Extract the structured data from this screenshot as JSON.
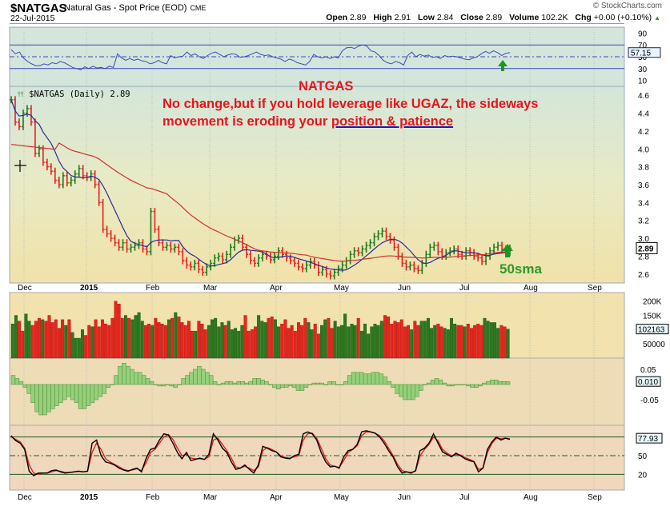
{
  "header": {
    "symbol": "$NATGAS",
    "description": "Natural Gas - Spot Price (EOD)",
    "exchange": "CME",
    "date": "22-Jul-2015",
    "brand": "© StockCharts.com",
    "open_label": "Open",
    "open": "2.89",
    "high_label": "High",
    "high": "2.91",
    "low_label": "Low",
    "low": "2.84",
    "close_label": "Close",
    "close": "2.89",
    "volume_label": "Volume",
    "volume": "102.2K",
    "chg_label": "Chg",
    "chg": "+0.00 (+0.10%)",
    "chg_icon": "up-triangle-icon"
  },
  "annotations": {
    "title": "NATGAS",
    "line1": "No change,but if you hold leverage like UGAZ, the sideways",
    "line2_prefix": "movement is eroding your ",
    "line2_underlined": "position & patience",
    "sma_label": "50sma",
    "arrow_icon": "green-up-arrow-icon"
  },
  "price_panel_label": "$NATGAS (Daily) 2.89",
  "colors": {
    "up": "#1e7a1e",
    "down": "#e8201c",
    "sma_short": "#2a2a9a",
    "sma_50": "#d0302a",
    "rsi_line": "#3a4ab8",
    "annot_red": "#e8141c",
    "annot_green": "#2a9a2a"
  },
  "chart_data": [
    {
      "panel": "rsi",
      "type": "line",
      "title": "RSI(14)",
      "yticks": [
        90,
        70,
        50,
        30,
        10
      ],
      "ylim": [
        0,
        100
      ],
      "last_value": "57.15",
      "bands": [
        30,
        50,
        70
      ],
      "values": [
        62,
        55,
        58,
        48,
        42,
        38,
        35,
        35,
        38,
        36,
        40,
        38,
        42,
        40,
        36,
        32,
        30,
        28,
        33,
        30,
        34,
        31,
        32,
        30,
        34,
        32,
        55,
        48,
        44,
        47,
        44,
        46,
        43,
        42,
        38,
        40,
        44,
        40,
        38,
        52,
        48,
        50,
        51,
        58,
        52,
        55,
        50,
        47,
        52,
        56,
        58,
        54,
        50,
        53,
        55,
        54,
        49,
        50,
        52,
        55,
        58,
        54,
        52,
        53,
        50,
        48,
        46,
        42,
        46,
        44,
        40,
        38,
        36,
        42,
        54,
        50,
        48,
        50,
        47,
        50,
        48,
        60,
        65,
        66,
        64,
        68,
        70,
        68,
        60,
        58,
        52,
        44,
        40,
        38,
        42,
        40,
        36,
        52,
        58,
        50,
        54,
        51,
        53,
        49,
        50,
        47,
        52,
        50,
        51,
        50,
        48,
        46,
        45,
        48,
        50,
        55,
        59,
        56,
        60,
        57,
        52,
        56,
        57
      ],
      "x": "trading days Nov-2014 to 22-Jul-2015"
    },
    {
      "panel": "price",
      "type": "ohlc",
      "title": "$NATGAS (Daily) 2.89",
      "yticks": [
        4.6,
        4.4,
        4.2,
        4.0,
        3.8,
        3.6,
        3.4,
        3.2,
        3.0,
        2.8,
        2.6
      ],
      "ylim": [
        2.5,
        4.7
      ],
      "last_value": "2.89",
      "closes": [
        4.55,
        4.3,
        4.25,
        4.4,
        4.45,
        4.3,
        3.95,
        4.0,
        3.85,
        3.8,
        3.75,
        3.65,
        3.6,
        3.7,
        3.62,
        3.65,
        3.72,
        3.78,
        3.7,
        3.68,
        3.72,
        3.6,
        3.4,
        3.1,
        3.05,
        3.0,
        2.95,
        2.9,
        2.95,
        2.88,
        2.9,
        2.92,
        2.95,
        2.88,
        2.85,
        3.3,
        3.1,
        2.95,
        2.9,
        2.92,
        2.88,
        2.9,
        2.85,
        2.75,
        2.7,
        2.68,
        2.72,
        2.65,
        2.62,
        2.68,
        2.72,
        2.78,
        2.8,
        2.76,
        2.82,
        2.9,
        2.98,
        3.0,
        2.9,
        2.82,
        2.75,
        2.72,
        2.78,
        2.82,
        2.8,
        2.76,
        2.8,
        2.86,
        2.82,
        2.78,
        2.75,
        2.72,
        2.68,
        2.66,
        2.7,
        2.74,
        2.7,
        2.62,
        2.65,
        2.6,
        2.58,
        2.62,
        2.66,
        2.7,
        2.75,
        2.82,
        2.86,
        2.84,
        2.88,
        2.92,
        2.95,
        3.02,
        3.05,
        3.08,
        3.02,
        2.98,
        2.9,
        2.8,
        2.72,
        2.68,
        2.7,
        2.66,
        2.64,
        2.72,
        2.82,
        2.9,
        2.92,
        2.85,
        2.8,
        2.84,
        2.86,
        2.88,
        2.82,
        2.8,
        2.86,
        2.84,
        2.8,
        2.78,
        2.74,
        2.8,
        2.86,
        2.9,
        2.92,
        2.88,
        2.84,
        2.89
      ],
      "sma_short": "blue ~10-20 day moving average",
      "sma_50": "red 50-day simple moving average"
    },
    {
      "panel": "volume",
      "type": "bar",
      "yticks": [
        "200K",
        "150K",
        "50000"
      ],
      "last_value": "102163",
      "values": [
        120,
        150,
        130,
        95,
        155,
        130,
        115,
        130,
        140,
        135,
        130,
        150,
        125,
        135,
        105,
        135,
        115,
        135,
        90,
        70,
        70,
        100,
        80,
        115,
        110,
        135,
        110,
        135,
        120,
        115,
        140,
        200,
        190,
        140,
        150,
        140,
        135,
        150,
        160,
        130,
        115,
        120,
        115,
        140,
        125,
        120,
        115,
        135,
        140,
        160,
        145,
        125,
        115,
        130,
        95,
        95,
        130,
        120,
        100,
        115,
        135,
        140,
        110,
        125,
        115,
        130,
        100,
        105,
        95,
        115,
        150,
        95,
        100,
        110,
        150,
        130,
        125,
        140,
        145,
        135,
        110,
        120,
        135,
        105,
        115,
        95,
        125,
        115,
        140,
        125,
        100,
        120,
        85,
        115,
        135,
        140,
        105,
        130,
        110,
        115,
        155,
        110,
        120,
        115,
        140,
        95,
        120,
        85,
        110,
        120,
        115,
        130,
        150,
        145,
        120,
        130,
        125,
        135,
        110,
        115,
        100,
        130,
        115,
        130,
        130,
        140,
        105,
        115,
        120,
        110,
        105,
        100,
        140,
        120,
        115,
        115,
        110,
        120,
        105,
        115,
        120,
        115,
        140,
        130,
        125,
        125,
        105,
        115,
        110,
        102
      ]
    },
    {
      "panel": "macd_histogram",
      "type": "bar",
      "yticks": [
        0.05,
        -0.05
      ],
      "last_value": "0.010",
      "values": [
        0.03,
        0.02,
        0.01,
        -0.01,
        -0.03,
        -0.06,
        -0.09,
        -0.1,
        -0.1,
        -0.09,
        -0.08,
        -0.07,
        -0.06,
        -0.05,
        -0.04,
        -0.05,
        -0.06,
        -0.08,
        -0.08,
        -0.07,
        -0.06,
        -0.05,
        -0.04,
        -0.03,
        -0.01,
        0.0,
        0.03,
        0.06,
        0.07,
        0.06,
        0.05,
        0.04,
        0.04,
        0.03,
        0.02,
        0.01,
        0.0,
        -0.005,
        -0.005,
        0.0,
        -0.005,
        -0.01,
        0.0,
        0.02,
        0.03,
        0.04,
        0.05,
        0.06,
        0.05,
        0.04,
        0.03,
        0.01,
        0.0,
        0.005,
        0.01,
        0.01,
        0.005,
        0.01,
        0.01,
        0.005,
        0.01,
        0.02,
        0.02,
        0.015,
        0.01,
        0.0,
        -0.01,
        -0.015,
        -0.01,
        -0.01,
        -0.005,
        -0.01,
        -0.02,
        -0.02,
        -0.01,
        0.0,
        0.005,
        0.005,
        0.005,
        0.0,
        0.01,
        0.01,
        0.0,
        0.0,
        0.01,
        0.03,
        0.04,
        0.04,
        0.04,
        0.035,
        0.035,
        0.04,
        0.04,
        0.035,
        0.025,
        0.01,
        -0.01,
        -0.03,
        -0.04,
        -0.05,
        -0.05,
        -0.05,
        -0.04,
        -0.02,
        0.0,
        0.005,
        0.015,
        0.02,
        0.015,
        0.005,
        -0.005,
        -0.005,
        0.0,
        0.0,
        0.0,
        -0.005,
        -0.01,
        -0.01,
        -0.005,
        0.005,
        0.01,
        0.015,
        0.015,
        0.01,
        0.01,
        0.01
      ]
    },
    {
      "panel": "stochastic",
      "type": "line",
      "yticks": [
        50,
        20
      ],
      "bands": [
        20,
        50,
        80
      ],
      "last_value": "77.93",
      "series": [
        {
          "name": "%K",
          "color": "#000000",
          "values": [
            82,
            74,
            70,
            60,
            25,
            18,
            22,
            22,
            22,
            26,
            27,
            24,
            22,
            23,
            24,
            25,
            24,
            25,
            70,
            75,
            50,
            40,
            38,
            35,
            30,
            27,
            25,
            28,
            30,
            24,
            45,
            60,
            62,
            75,
            85,
            83,
            70,
            55,
            45,
            55,
            42,
            44,
            46,
            44,
            52,
            85,
            75,
            62,
            55,
            40,
            28,
            30,
            35,
            28,
            22,
            35,
            65,
            62,
            58,
            56,
            48,
            46,
            45,
            50,
            52,
            85,
            88,
            85,
            75,
            55,
            40,
            32,
            33,
            30,
            48,
            58,
            60,
            68,
            88,
            90,
            88,
            86,
            80,
            70,
            58,
            48,
            32,
            22,
            24,
            22,
            26,
            58,
            62,
            70,
            85,
            70,
            56,
            52,
            48,
            54,
            50,
            45,
            42,
            40,
            24,
            30,
            60,
            72,
            80,
            75,
            78,
            76
          ]
        },
        {
          "name": "%D",
          "color": "#e02020",
          "values": [
            80,
            76,
            72,
            62,
            35,
            22,
            20,
            22,
            22,
            24,
            26,
            25,
            23,
            23,
            24,
            25,
            24,
            25,
            55,
            70,
            60,
            45,
            40,
            36,
            32,
            28,
            26,
            27,
            29,
            26,
            38,
            55,
            60,
            70,
            80,
            84,
            76,
            62,
            50,
            52,
            46,
            45,
            45,
            44,
            48,
            75,
            78,
            68,
            58,
            46,
            32,
            30,
            33,
            30,
            26,
            32,
            58,
            63,
            60,
            56,
            50,
            47,
            46,
            48,
            50,
            75,
            85,
            86,
            78,
            62,
            45,
            35,
            33,
            31,
            42,
            55,
            60,
            66,
            82,
            88,
            88,
            86,
            82,
            74,
            62,
            50,
            36,
            26,
            24,
            23,
            25,
            50,
            60,
            68,
            80,
            74,
            60,
            54,
            50,
            52,
            51,
            47,
            44,
            41,
            28,
            30,
            55,
            70,
            78,
            77,
            78,
            77
          ]
        }
      ]
    }
  ],
  "x_axis": {
    "months": [
      "Dec",
      "2015",
      "Feb",
      "Mar",
      "Apr",
      "May",
      "Jun",
      "Jul",
      "Aug",
      "Sep"
    ]
  }
}
